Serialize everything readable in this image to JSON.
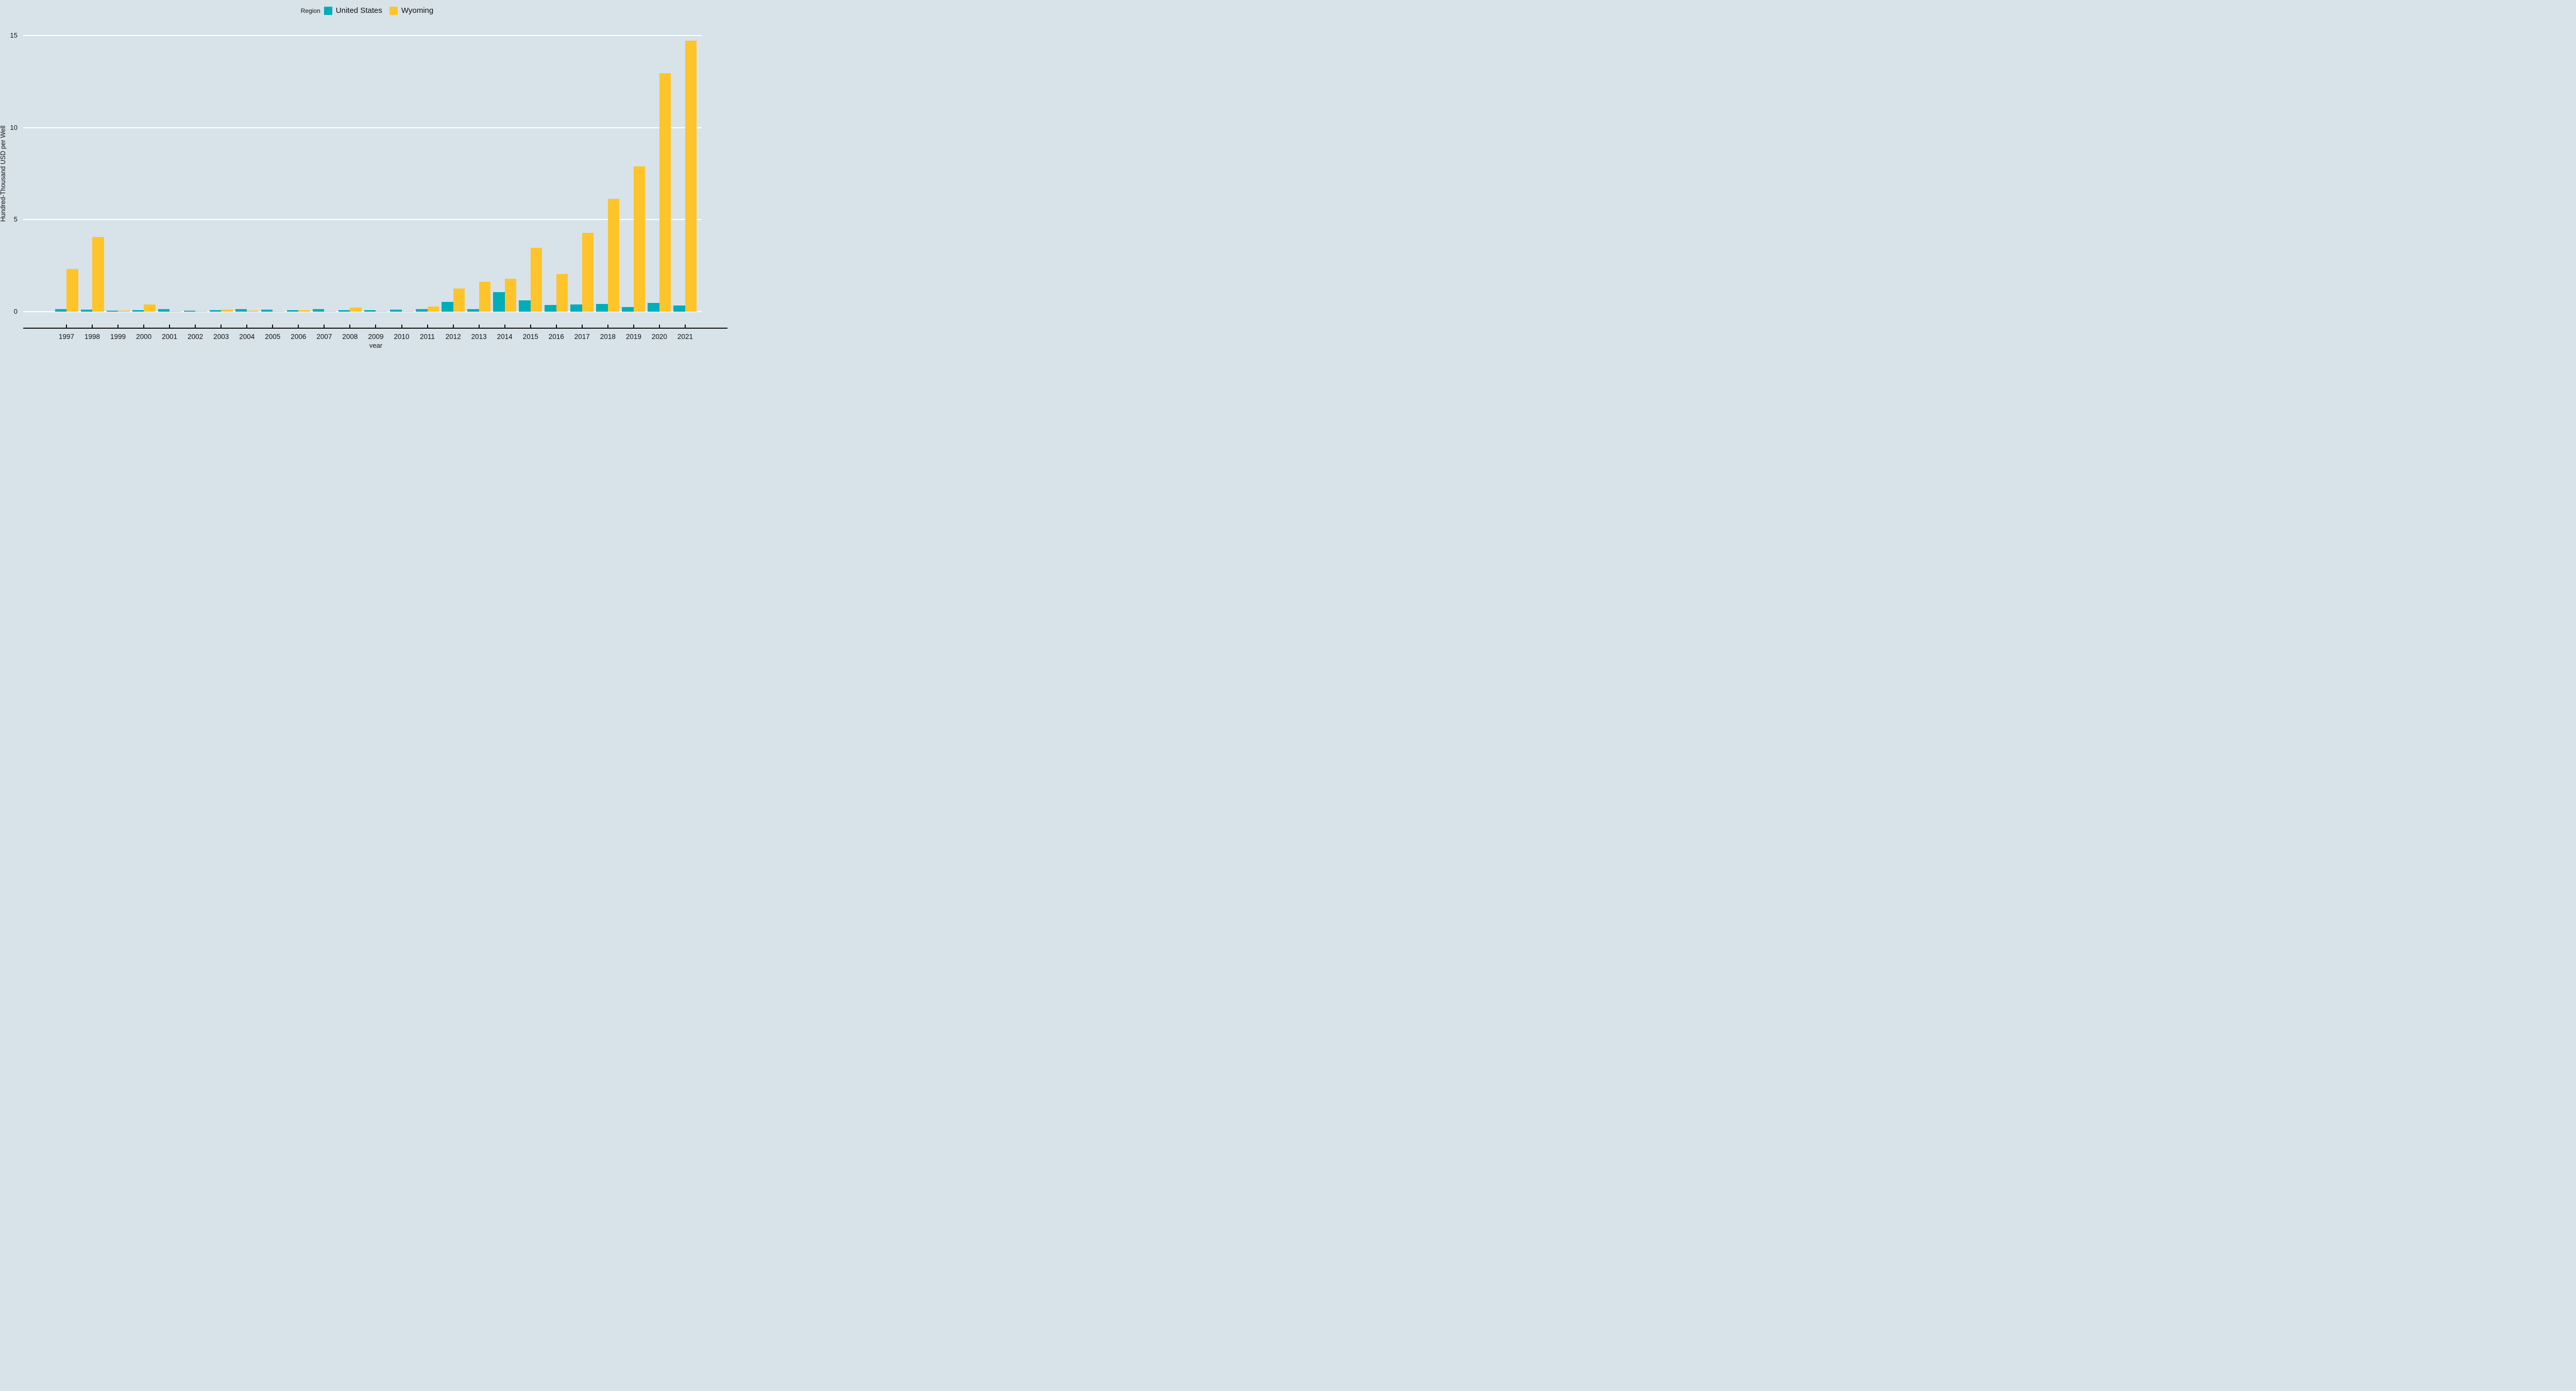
{
  "legend": {
    "title": "Region",
    "items": [
      {
        "label": "United States",
        "color": "#00adb9"
      },
      {
        "label": "Wyoming",
        "color": "#ffc429"
      }
    ]
  },
  "colors": {
    "background": "#d7e2e9",
    "gridline": "#ffffff",
    "axis": "#111111",
    "text": "#111111",
    "united_states": "#00adb9",
    "wyoming": "#ffc429"
  },
  "chart_data": {
    "type": "bar",
    "title": "",
    "xlabel": "year",
    "ylabel": "Hundred-Thousand USD per Well",
    "ylim": [
      0,
      15
    ],
    "yticks": [
      0,
      5,
      10,
      15
    ],
    "grid": true,
    "legend_position": "top-center",
    "categories": [
      1997,
      1998,
      1999,
      2000,
      2001,
      2002,
      2003,
      2004,
      2005,
      2006,
      2007,
      2008,
      2009,
      2010,
      2011,
      2012,
      2013,
      2014,
      2015,
      2016,
      2017,
      2018,
      2019,
      2020,
      2021
    ],
    "series": [
      {
        "name": "United States",
        "color": "#00adb9",
        "values": [
          0.14,
          0.12,
          0.05,
          0.08,
          0.15,
          0.06,
          0.08,
          0.14,
          0.12,
          0.07,
          0.15,
          0.07,
          0.07,
          0.11,
          0.13,
          0.52,
          0.13,
          1.05,
          0.61,
          0.36,
          0.38,
          0.43,
          0.24,
          0.47,
          0.34
        ]
      },
      {
        "name": "Wyoming",
        "color": "#ffc429",
        "values": [
          2.33,
          4.05,
          0.06,
          0.4,
          0.02,
          0.03,
          0.12,
          0.05,
          0.04,
          0.07,
          0.04,
          0.21,
          0.02,
          0.04,
          0.27,
          1.25,
          1.62,
          1.8,
          3.48,
          2.05,
          4.28,
          6.12,
          7.9,
          12.95,
          14.72
        ]
      }
    ]
  }
}
